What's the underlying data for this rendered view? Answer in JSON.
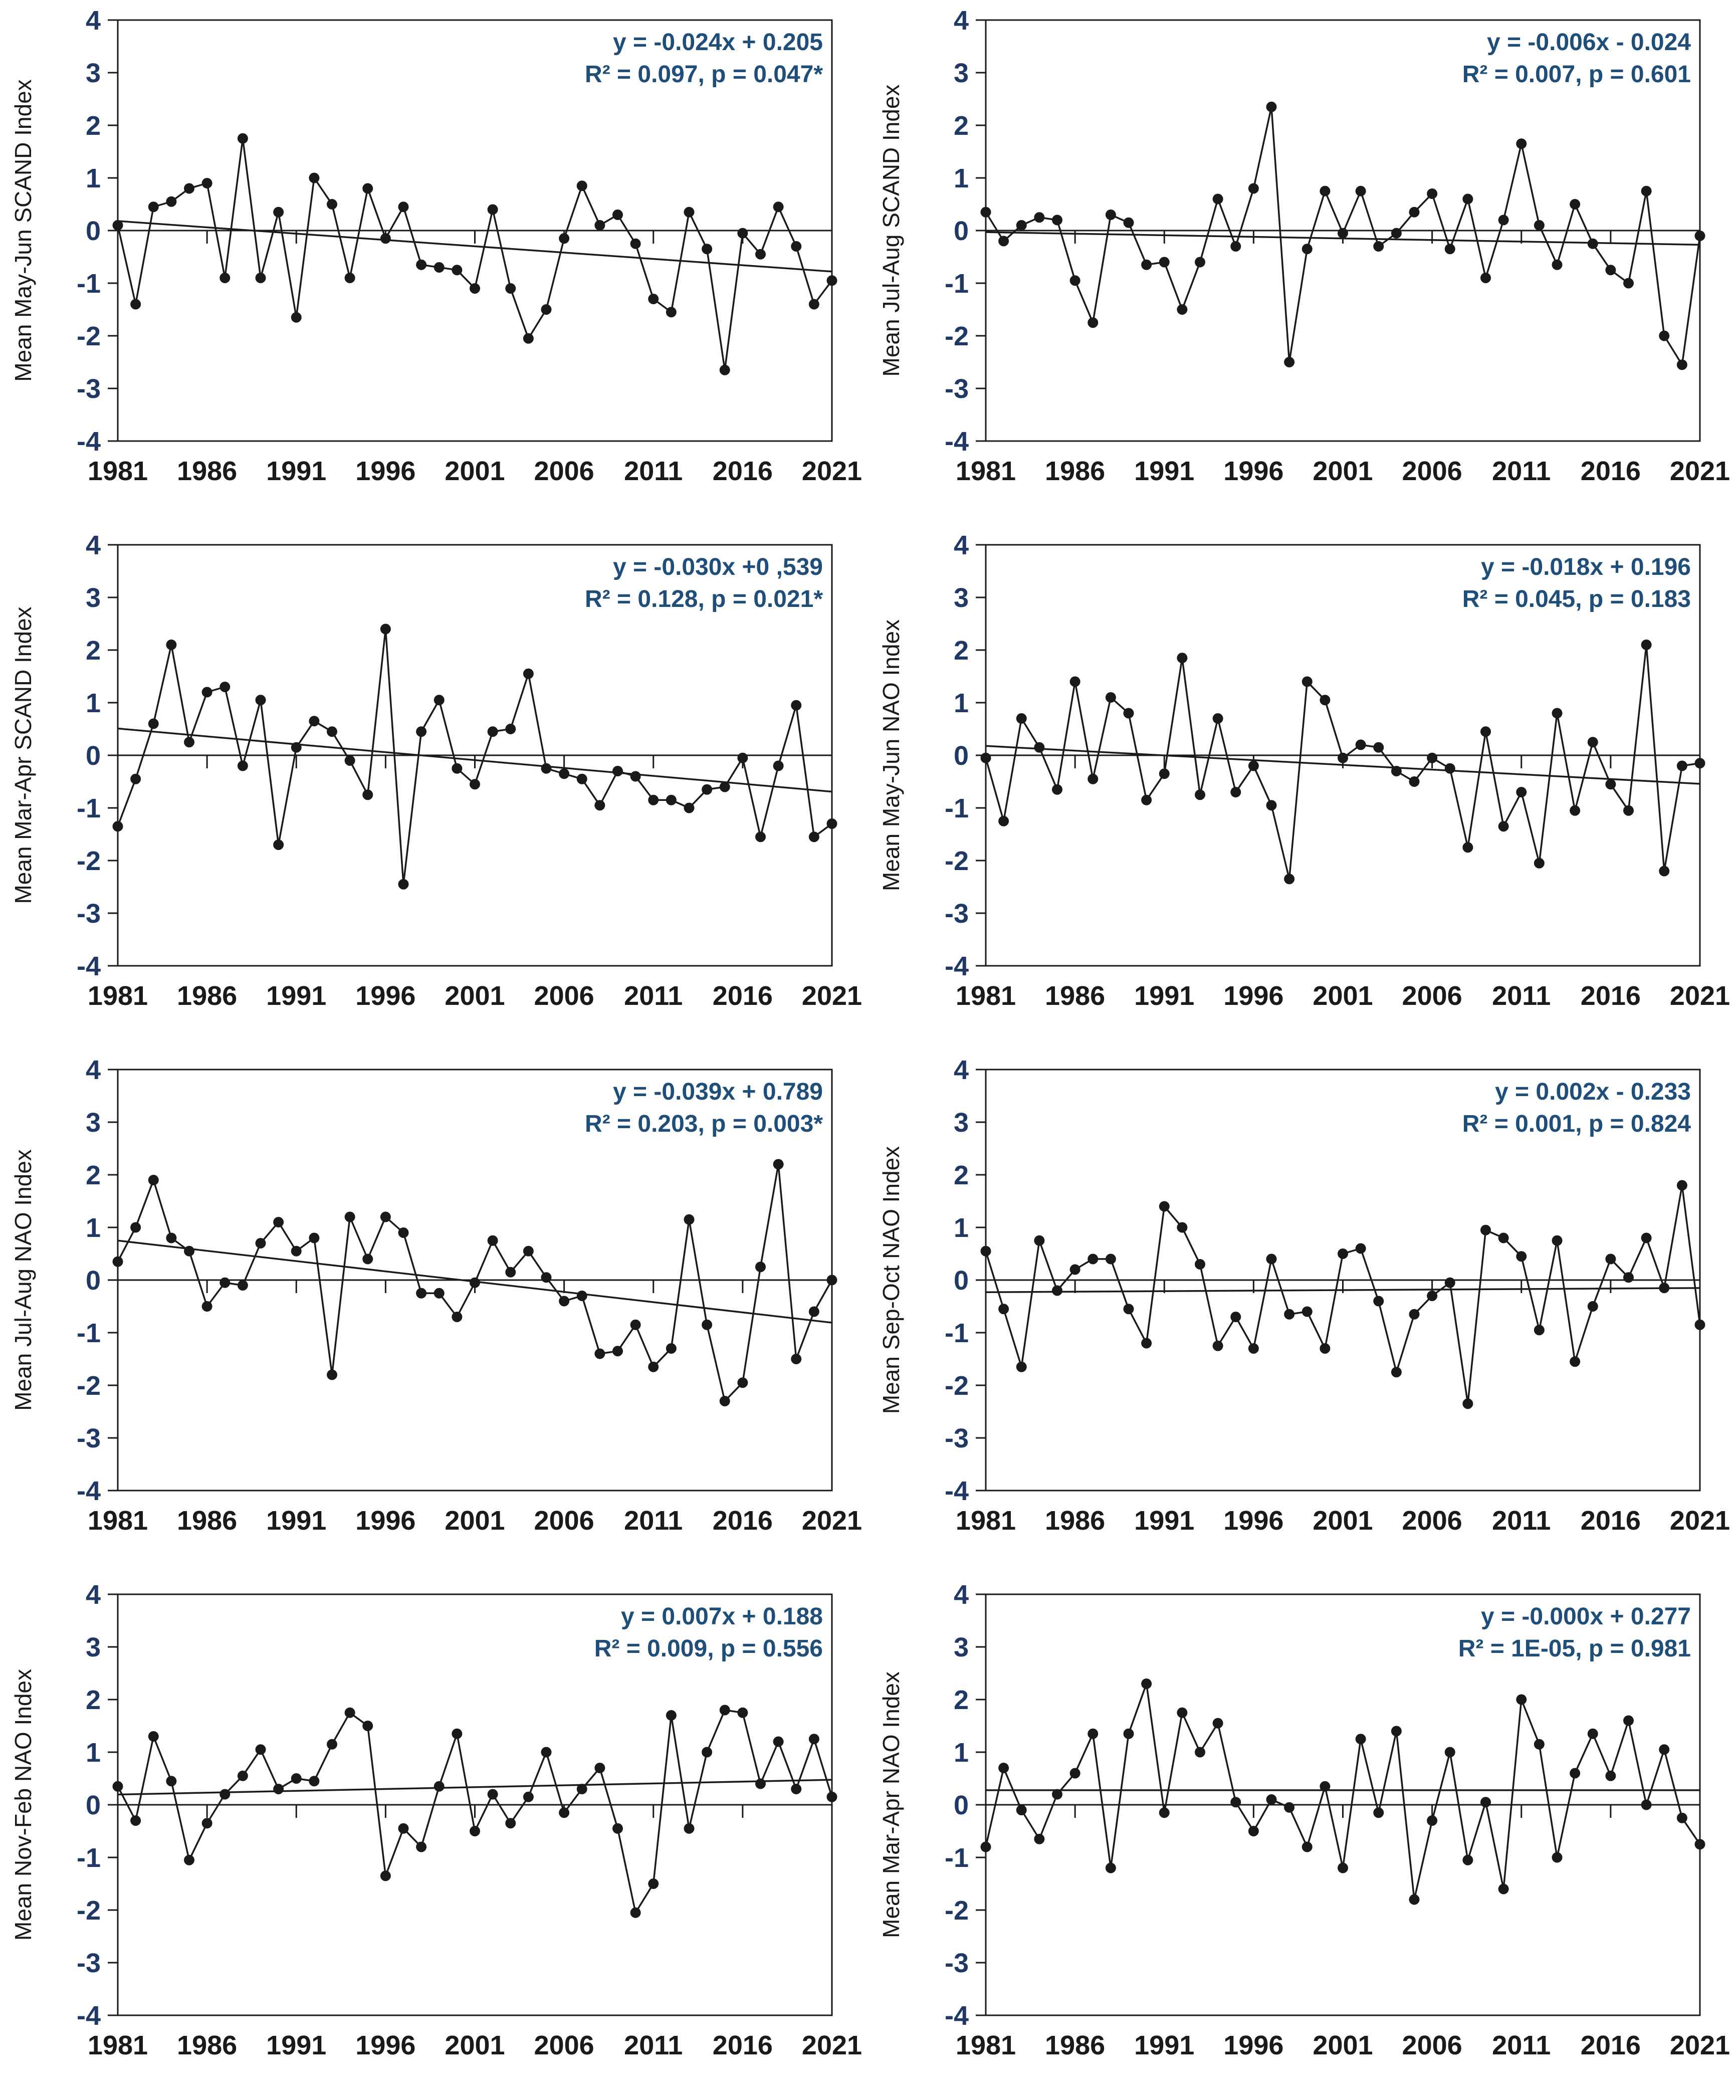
{
  "axis": {
    "ylim": [
      -4,
      4
    ],
    "xlim": [
      1981,
      2021
    ],
    "y_ticks": [
      4,
      3,
      2,
      1,
      0,
      -1,
      -2,
      -3,
      -4
    ],
    "x_tick_labels": [
      "1981",
      "1986",
      "1991",
      "1996",
      "2001",
      "2006",
      "2011",
      "2016",
      "2021"
    ],
    "x_minor_ticks": [
      1986,
      1991,
      1996,
      2001,
      2006,
      2011,
      2016,
      2021
    ]
  },
  "colors": {
    "line": "#1a1a1a",
    "equation_text": "#1f4e79",
    "y_tick_text": "#1f3864",
    "x_tick_text": "#1a1a1a",
    "background": "#ffffff"
  },
  "chart_data": [
    {
      "type": "line",
      "ylabel": "Mean May-Jun SCAND Index",
      "equation": "y = -0.024x + 0.205",
      "stats": "R² = 0.097, p = 0.047*",
      "trend": {
        "slope": -0.024,
        "intercept": 0.205
      },
      "x_start": 1981,
      "x_step": 1,
      "values": [
        0.1,
        -1.4,
        0.45,
        0.55,
        0.8,
        0.9,
        -0.9,
        1.75,
        -0.9,
        0.35,
        -1.65,
        1.0,
        0.5,
        -0.9,
        0.8,
        -0.15,
        0.45,
        -0.65,
        -0.7,
        -0.75,
        -1.1,
        0.4,
        -1.1,
        -2.05,
        -1.5,
        -0.15,
        0.85,
        0.1,
        0.3,
        -0.25,
        -1.3,
        -1.55,
        0.35,
        -0.35,
        -2.65,
        -0.05,
        -0.45,
        0.45,
        -0.3,
        -1.4,
        -0.95
      ]
    },
    {
      "type": "line",
      "ylabel": "Mean Jul-Aug SCAND Index",
      "equation": "y = -0.006x - 0.024",
      "stats": "R² = 0.007, p = 0.601",
      "trend": {
        "slope": -0.006,
        "intercept": -0.024
      },
      "x_start": 1981,
      "x_step": 1,
      "values": [
        0.35,
        -0.2,
        0.1,
        0.25,
        0.2,
        -0.95,
        -1.75,
        0.3,
        0.15,
        -0.65,
        -0.6,
        -1.5,
        -0.6,
        0.6,
        -0.3,
        0.8,
        2.35,
        -2.5,
        -0.35,
        0.75,
        -0.05,
        0.75,
        -0.3,
        -0.05,
        0.35,
        0.7,
        -0.35,
        0.6,
        -0.9,
        0.2,
        1.65,
        0.1,
        -0.65,
        0.5,
        -0.25,
        -0.75,
        -1.0,
        0.75,
        -2.0,
        -2.55,
        -0.1
      ]
    },
    {
      "type": "line",
      "ylabel": "Mean Mar-Apr SCAND Index",
      "equation": "y = -0.030x +0 ,539",
      "stats": "R² = 0.128, p = 0.021*",
      "trend": {
        "slope": -0.03,
        "intercept": 0.539
      },
      "x_start": 1981,
      "x_step": 1,
      "values": [
        -1.35,
        -0.45,
        0.6,
        2.1,
        0.25,
        1.2,
        1.3,
        -0.2,
        1.05,
        -1.7,
        0.15,
        0.65,
        0.45,
        -0.1,
        -0.75,
        2.4,
        -2.45,
        0.45,
        1.05,
        -0.25,
        -0.55,
        0.45,
        0.5,
        1.55,
        -0.25,
        -0.35,
        -0.45,
        -0.95,
        -0.3,
        -0.4,
        -0.85,
        -0.85,
        -1.0,
        -0.65,
        -0.6,
        -0.05,
        -1.55,
        -0.2,
        0.95,
        -1.55,
        -1.3
      ]
    },
    {
      "type": "line",
      "ylabel": "Mean May-Jun NAO Index",
      "equation": "y = -0.018x + 0.196",
      "stats": "R² = 0.045, p = 0.183",
      "trend": {
        "slope": -0.018,
        "intercept": 0.196
      },
      "x_start": 1981,
      "x_step": 1,
      "values": [
        -0.05,
        -1.25,
        0.7,
        0.15,
        -0.65,
        1.4,
        -0.45,
        1.1,
        0.8,
        -0.85,
        -0.35,
        1.85,
        -0.75,
        0.7,
        -0.7,
        -0.2,
        -0.95,
        -2.35,
        1.4,
        1.05,
        -0.05,
        0.2,
        0.15,
        -0.3,
        -0.5,
        -0.05,
        -0.25,
        -1.75,
        0.45,
        -1.35,
        -0.7,
        -2.05,
        0.8,
        -1.05,
        0.25,
        -0.55,
        -1.05,
        2.1,
        -2.2,
        -0.2,
        -0.15
      ]
    },
    {
      "type": "line",
      "ylabel": "Mean Jul-Aug NAO Index",
      "equation": "y = -0.039x + 0.789",
      "stats": "R² = 0.203, p = 0.003*",
      "trend": {
        "slope": -0.039,
        "intercept": 0.789
      },
      "x_start": 1981,
      "x_step": 1,
      "values": [
        0.35,
        1.0,
        1.9,
        0.8,
        0.55,
        -0.5,
        -0.05,
        -0.1,
        0.7,
        1.1,
        0.55,
        0.8,
        -1.8,
        1.2,
        0.4,
        1.2,
        0.9,
        -0.25,
        -0.25,
        -0.7,
        -0.05,
        0.75,
        0.15,
        0.55,
        0.05,
        -0.4,
        -0.3,
        -1.4,
        -1.35,
        -0.85,
        -1.65,
        -1.3,
        1.15,
        -0.85,
        -2.3,
        -1.95,
        0.25,
        2.2,
        -1.5,
        -0.6,
        0.0
      ]
    },
    {
      "type": "line",
      "ylabel": "Mean Sep-Oct  NAO Index",
      "equation": "y = 0.002x - 0.233",
      "stats": "R² = 0.001, p = 0.824",
      "trend": {
        "slope": 0.002,
        "intercept": -0.233
      },
      "x_start": 1981,
      "x_step": 1,
      "values": [
        0.55,
        -0.55,
        -1.65,
        0.75,
        -0.2,
        0.2,
        0.4,
        0.4,
        -0.55,
        -1.2,
        1.4,
        1.0,
        0.3,
        -1.25,
        -0.7,
        -1.3,
        0.4,
        -0.65,
        -0.6,
        -1.3,
        0.5,
        0.6,
        -0.4,
        -1.75,
        -0.65,
        -0.3,
        -0.05,
        -2.35,
        0.95,
        0.8,
        0.45,
        -0.95,
        0.75,
        -1.55,
        -0.5,
        0.4,
        0.05,
        0.8,
        -0.15,
        1.8,
        -0.85
      ]
    },
    {
      "type": "line",
      "ylabel": "Mean Nov-Feb NAO Index",
      "equation": "y = 0.007x + 0.188",
      "stats": "R² = 0.009, p =  0.556",
      "trend": {
        "slope": 0.007,
        "intercept": 0.188
      },
      "x_start": 1981,
      "x_step": 1,
      "values": [
        0.35,
        -0.3,
        1.3,
        0.45,
        -1.05,
        -0.35,
        0.2,
        0.55,
        1.05,
        0.3,
        0.5,
        0.45,
        1.15,
        1.75,
        1.5,
        -1.35,
        -0.45,
        -0.8,
        0.35,
        1.35,
        -0.5,
        0.2,
        -0.35,
        0.15,
        1.0,
        -0.15,
        0.3,
        0.7,
        -0.45,
        -2.05,
        -1.5,
        1.7,
        -0.45,
        1.0,
        1.8,
        1.75,
        0.4,
        1.2,
        0.3,
        1.25,
        0.15
      ]
    },
    {
      "type": "line",
      "ylabel": "Mean Mar-Apr NAO Index",
      "equation": "y = -0.000x + 0.277",
      "stats": "R² = 1E-05, p = 0.981",
      "trend": {
        "slope": 0.0,
        "intercept": 0.277
      },
      "x_start": 1981,
      "x_step": 1,
      "values": [
        -0.8,
        0.7,
        -0.1,
        -0.65,
        0.2,
        0.6,
        1.35,
        -1.2,
        1.35,
        2.3,
        -0.15,
        1.75,
        1.0,
        1.55,
        0.05,
        -0.5,
        0.1,
        -0.05,
        -0.8,
        0.35,
        -1.2,
        1.25,
        -0.15,
        1.4,
        -1.8,
        -0.3,
        1.0,
        -1.05,
        0.05,
        -1.6,
        2.0,
        1.15,
        -1.0,
        0.6,
        1.35,
        0.55,
        1.6,
        0.0,
        1.05,
        -0.25,
        -0.75
      ]
    }
  ]
}
